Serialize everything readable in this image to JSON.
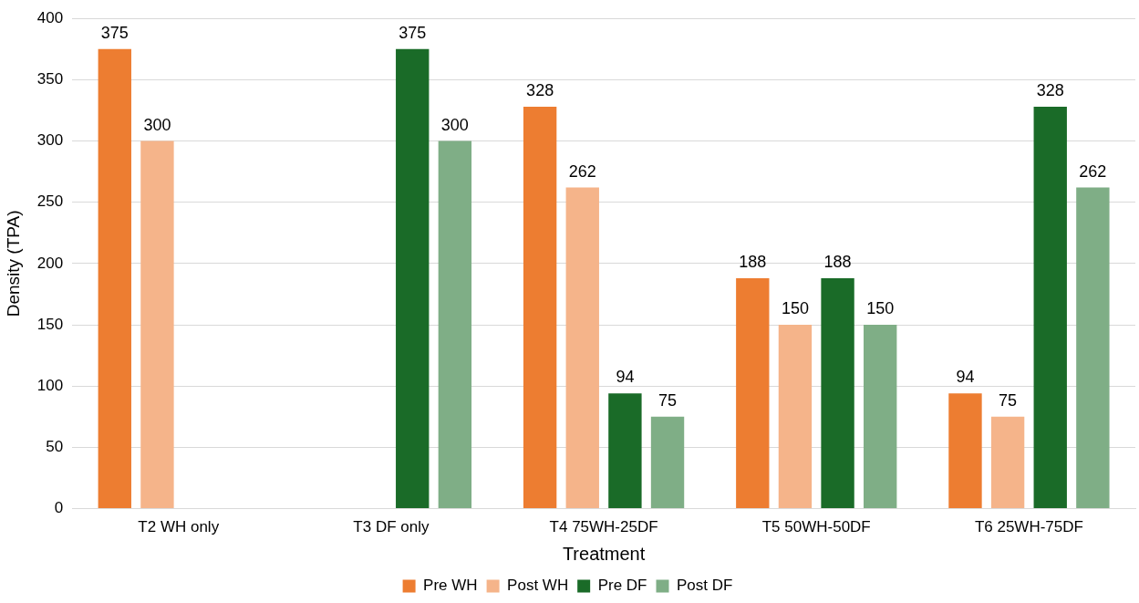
{
  "chart_data": {
    "type": "bar",
    "xlabel": "Treatment",
    "ylabel": "Density (TPA)",
    "categories": [
      "T2 WH only",
      "T3 DF only",
      "T4 75WH-25DF",
      "T5 50WH-50DF",
      "T6 25WH-75DF"
    ],
    "series": [
      {
        "name": "Pre WH",
        "color": "#ed7d31",
        "values": [
          375,
          null,
          328,
          188,
          94
        ]
      },
      {
        "name": "Post WH",
        "color": "#f5b48a",
        "values": [
          300,
          null,
          262,
          150,
          75
        ]
      },
      {
        "name": "Pre DF",
        "color": "#1a6b28",
        "values": [
          null,
          375,
          94,
          188,
          328
        ]
      },
      {
        "name": "Post DF",
        "color": "#7fae86",
        "values": [
          null,
          300,
          75,
          150,
          262
        ]
      }
    ],
    "ylim": [
      0,
      400
    ],
    "yticks": [
      0,
      50,
      100,
      150,
      200,
      250,
      300,
      350,
      400
    ],
    "grid": "y",
    "legend": "bottom",
    "data_labels": true
  }
}
